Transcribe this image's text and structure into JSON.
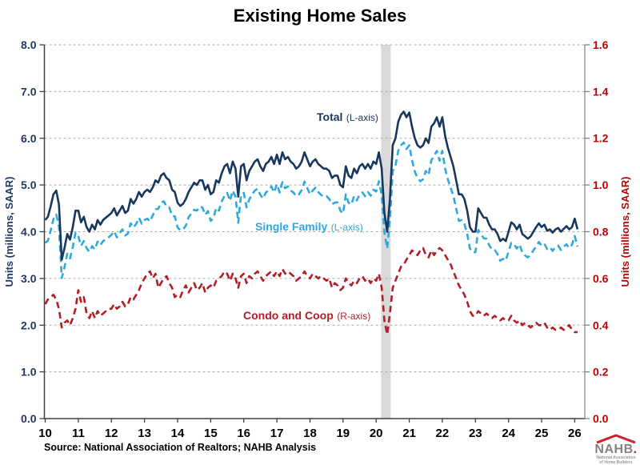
{
  "title": "Existing Home Sales",
  "source_note": "Source: National Association of Realtors; NAHB Analysis",
  "left_axis": {
    "title": "Units (millions, SAAR)",
    "color": "#1F3864",
    "range": [
      0,
      8
    ],
    "ticks": [
      "0.0",
      "1.0",
      "2.0",
      "3.0",
      "4.0",
      "5.0",
      "6.0",
      "7.0",
      "8.0"
    ]
  },
  "right_axis": {
    "title": "Units (millions, SAAR)",
    "color": "#C00000",
    "range": [
      0,
      1.6
    ],
    "ticks": [
      "0.0",
      "0.2",
      "0.4",
      "0.6",
      "0.8",
      "1.0",
      "1.2",
      "1.4",
      "1.6"
    ]
  },
  "x_axis": {
    "labels": [
      "10",
      "11",
      "12",
      "13",
      "14",
      "15",
      "16",
      "17",
      "18",
      "19",
      "20",
      "21",
      "22",
      "23",
      "24",
      "25",
      "26"
    ]
  },
  "annotations": [
    {
      "name": "Total",
      "suffix": "(L-axis)"
    },
    {
      "name": "Single Family",
      "suffix": "(L-axis)"
    },
    {
      "name": "Condo and Coop",
      "suffix": "(R-axis)"
    }
  ],
  "logo": {
    "word": "NAHB",
    "dot": ".",
    "sub1": "National Association",
    "sub2": "of Home Builders"
  },
  "chart_data": {
    "type": "line",
    "title": "Existing Home Sales",
    "x_start_year": 2010.0,
    "x_interval": "monthly",
    "x_tick_years": [
      2010,
      2011,
      2012,
      2013,
      2014,
      2015,
      2016,
      2017,
      2018,
      2019,
      2020,
      2021,
      2022,
      2023,
      2024,
      2025,
      2026
    ],
    "left_ylim": [
      0,
      8
    ],
    "right_ylim": [
      0,
      1.6
    ],
    "grid": true,
    "recession": {
      "start": 2020.15,
      "end": 2020.44,
      "color": "#D9D9D9"
    },
    "series": [
      {
        "name": "Total",
        "axis": "left",
        "style": "solid",
        "color": "#17375E",
        "values": [
          4.25,
          4.32,
          4.55,
          4.8,
          4.88,
          4.58,
          3.4,
          3.65,
          3.95,
          3.83,
          4.1,
          4.45,
          4.45,
          4.2,
          4.32,
          4.1,
          4.0,
          4.15,
          4.05,
          4.25,
          4.15,
          4.25,
          4.3,
          4.35,
          4.4,
          4.5,
          4.35,
          4.45,
          4.55,
          4.4,
          4.45,
          4.7,
          4.6,
          4.7,
          4.85,
          4.75,
          4.85,
          4.9,
          4.85,
          4.95,
          5.1,
          5.05,
          5.2,
          5.25,
          5.15,
          5.1,
          4.9,
          4.85,
          4.62,
          4.55,
          4.6,
          4.7,
          4.85,
          4.95,
          5.05,
          5.0,
          5.1,
          5.1,
          4.9,
          5.0,
          4.8,
          4.85,
          5.1,
          5.05,
          5.25,
          5.4,
          5.45,
          5.25,
          5.5,
          5.35,
          4.75,
          5.4,
          5.45,
          5.1,
          5.3,
          5.4,
          5.5,
          5.55,
          5.4,
          5.3,
          5.45,
          5.5,
          5.6,
          5.45,
          5.65,
          5.45,
          5.7,
          5.55,
          5.6,
          5.5,
          5.45,
          5.35,
          5.4,
          5.5,
          5.7,
          5.55,
          5.4,
          5.5,
          5.55,
          5.45,
          5.4,
          5.35,
          5.35,
          5.3,
          5.15,
          5.2,
          5.2,
          5.0,
          4.95,
          5.4,
          5.2,
          5.15,
          5.35,
          5.25,
          5.4,
          5.45,
          5.35,
          5.45,
          5.35,
          5.5,
          5.45,
          5.7,
          5.35,
          4.4,
          4.0,
          4.7,
          5.85,
          6.0,
          6.35,
          6.5,
          6.57,
          6.45,
          6.55,
          6.25,
          6.0,
          5.85,
          5.8,
          5.85,
          6.0,
          5.9,
          6.25,
          6.32,
          6.45,
          6.25,
          6.45,
          6.05,
          5.8,
          5.6,
          5.4,
          5.1,
          4.8,
          4.8,
          4.7,
          4.45,
          4.1,
          4.0,
          4.0,
          4.5,
          4.4,
          4.3,
          4.3,
          4.15,
          4.05,
          4.05,
          3.95,
          3.8,
          3.85,
          3.8,
          4.0,
          4.2,
          4.15,
          4.05,
          4.15,
          3.95,
          3.9,
          3.85,
          3.9,
          4.0,
          4.1,
          4.18,
          4.1,
          4.15,
          4.02,
          4.05,
          3.98,
          4.05,
          4.08,
          4.0,
          4.06,
          4.12,
          4.05,
          4.1,
          4.28,
          4.05
        ]
      },
      {
        "name": "Single Family",
        "axis": "left",
        "style": "dashed",
        "color": "#2FA8DC",
        "values": [
          3.76,
          3.81,
          4.03,
          4.27,
          4.37,
          4.11,
          3.01,
          3.24,
          3.53,
          3.43,
          3.67,
          3.98,
          3.9,
          3.7,
          3.8,
          3.65,
          3.57,
          3.69,
          3.62,
          3.79,
          3.71,
          3.8,
          3.84,
          3.88,
          3.93,
          4.01,
          3.88,
          3.97,
          4.05,
          3.92,
          3.96,
          4.18,
          4.09,
          4.17,
          4.3,
          4.17,
          4.25,
          4.28,
          4.22,
          4.35,
          4.48,
          4.49,
          4.62,
          4.65,
          4.54,
          4.52,
          4.34,
          4.33,
          4.09,
          4.03,
          4.05,
          4.13,
          4.31,
          4.39,
          4.47,
          4.45,
          4.54,
          4.52,
          4.36,
          4.44,
          4.23,
          4.29,
          4.51,
          4.45,
          4.64,
          4.77,
          4.83,
          4.66,
          4.88,
          4.75,
          4.19,
          4.79,
          4.83,
          4.52,
          4.69,
          4.8,
          4.88,
          4.92,
          4.79,
          4.71,
          4.84,
          4.88,
          4.97,
          4.84,
          5.02,
          4.84,
          5.06,
          4.93,
          4.97,
          4.88,
          4.84,
          4.76,
          4.8,
          4.89,
          5.07,
          4.94,
          4.8,
          4.88,
          4.94,
          4.85,
          4.79,
          4.75,
          4.76,
          4.7,
          4.59,
          4.62,
          4.63,
          4.45,
          4.39,
          4.8,
          4.62,
          4.58,
          4.76,
          4.67,
          4.8,
          4.84,
          4.76,
          4.85,
          4.77,
          4.9,
          4.86,
          5.08,
          4.79,
          3.98,
          3.64,
          4.25,
          5.29,
          5.41,
          5.73,
          5.85,
          5.91,
          5.77,
          5.85,
          5.53,
          5.29,
          5.15,
          5.08,
          5.12,
          5.3,
          5.21,
          5.53,
          5.62,
          5.73,
          5.52,
          5.73,
          5.35,
          5.12,
          4.94,
          4.77,
          4.5,
          4.23,
          4.25,
          4.17,
          3.95,
          3.64,
          3.56,
          3.56,
          4.04,
          3.95,
          3.86,
          3.85,
          3.71,
          3.62,
          3.61,
          3.52,
          3.38,
          3.42,
          3.38,
          3.58,
          3.76,
          3.73,
          3.64,
          3.73,
          3.55,
          3.49,
          3.45,
          3.51,
          3.6,
          3.69,
          3.78,
          3.7,
          3.74,
          3.63,
          3.67,
          3.59,
          3.67,
          3.7,
          3.61,
          3.68,
          3.73,
          3.65,
          3.72,
          3.91,
          3.68
        ]
      },
      {
        "name": "Condo and Coop",
        "axis": "right",
        "style": "dashed",
        "color": "#B21E28",
        "values": [
          0.49,
          0.51,
          0.52,
          0.53,
          0.51,
          0.47,
          0.39,
          0.41,
          0.42,
          0.4,
          0.43,
          0.47,
          0.55,
          0.5,
          0.52,
          0.45,
          0.43,
          0.46,
          0.43,
          0.46,
          0.44,
          0.45,
          0.46,
          0.47,
          0.47,
          0.49,
          0.47,
          0.48,
          0.5,
          0.48,
          0.49,
          0.52,
          0.51,
          0.53,
          0.55,
          0.58,
          0.6,
          0.62,
          0.63,
          0.6,
          0.62,
          0.56,
          0.58,
          0.6,
          0.61,
          0.58,
          0.56,
          0.52,
          0.53,
          0.52,
          0.55,
          0.57,
          0.54,
          0.56,
          0.58,
          0.55,
          0.56,
          0.58,
          0.54,
          0.56,
          0.57,
          0.56,
          0.59,
          0.6,
          0.61,
          0.63,
          0.62,
          0.59,
          0.62,
          0.6,
          0.56,
          0.61,
          0.62,
          0.58,
          0.61,
          0.6,
          0.62,
          0.63,
          0.61,
          0.59,
          0.61,
          0.62,
          0.63,
          0.61,
          0.63,
          0.61,
          0.64,
          0.62,
          0.63,
          0.62,
          0.61,
          0.59,
          0.6,
          0.61,
          0.63,
          0.61,
          0.6,
          0.62,
          0.61,
          0.6,
          0.61,
          0.6,
          0.59,
          0.6,
          0.56,
          0.58,
          0.57,
          0.55,
          0.56,
          0.6,
          0.58,
          0.57,
          0.59,
          0.58,
          0.6,
          0.61,
          0.59,
          0.6,
          0.58,
          0.6,
          0.59,
          0.62,
          0.56,
          0.42,
          0.36,
          0.45,
          0.56,
          0.59,
          0.62,
          0.65,
          0.66,
          0.68,
          0.7,
          0.72,
          0.71,
          0.7,
          0.72,
          0.73,
          0.7,
          0.69,
          0.72,
          0.7,
          0.72,
          0.73,
          0.72,
          0.7,
          0.68,
          0.66,
          0.63,
          0.6,
          0.57,
          0.55,
          0.53,
          0.5,
          0.46,
          0.44,
          0.44,
          0.46,
          0.45,
          0.44,
          0.45,
          0.44,
          0.43,
          0.44,
          0.43,
          0.42,
          0.43,
          0.42,
          0.42,
          0.44,
          0.42,
          0.41,
          0.42,
          0.4,
          0.41,
          0.4,
          0.39,
          0.4,
          0.41,
          0.4,
          0.4,
          0.41,
          0.39,
          0.38,
          0.39,
          0.38,
          0.38,
          0.39,
          0.38,
          0.39,
          0.4,
          0.38,
          0.37,
          0.37
        ]
      }
    ]
  }
}
